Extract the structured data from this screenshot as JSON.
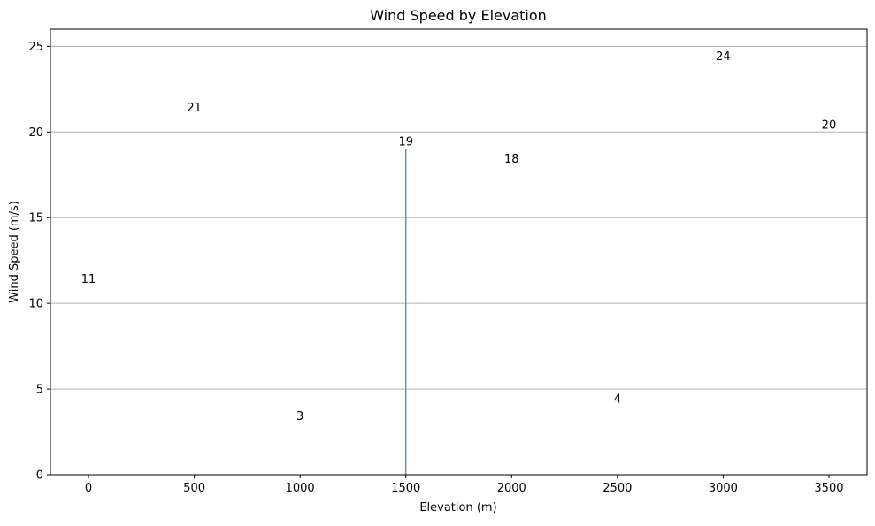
{
  "chart_data": {
    "type": "bar",
    "title": "Wind Speed by Elevation",
    "xlabel": "Elevation (m)",
    "ylabel": "Wind Speed (m/s)",
    "x": [
      0,
      500,
      1000,
      1500,
      2000,
      2500,
      3000,
      3500
    ],
    "values": [
      11,
      21,
      3,
      19,
      18,
      4,
      24,
      20
    ],
    "visible_bar": [
      0,
      0,
      0,
      1,
      0,
      0,
      0,
      0
    ],
    "data_labels": [
      "11",
      "21",
      "3",
      "19",
      "18",
      "4",
      "24",
      "20"
    ],
    "xlim": [
      -180,
      3680
    ],
    "ylim": [
      0,
      26
    ],
    "xticks": [
      0,
      500,
      1000,
      1500,
      2000,
      2500,
      3000,
      3500
    ],
    "xtick_labels": [
      "0",
      "500",
      "1000",
      "1500",
      "2000",
      "2500",
      "3000",
      "3500"
    ],
    "yticks": [
      0,
      5,
      10,
      15,
      20,
      25
    ],
    "ytick_labels": [
      "0",
      "5",
      "10",
      "15",
      "20",
      "25"
    ],
    "grid": "y",
    "legend": "none",
    "colors": {
      "bar": "#4a7fa3",
      "grid": "#b0b0b0",
      "axis": "#000000",
      "background": "#ffffff"
    }
  }
}
